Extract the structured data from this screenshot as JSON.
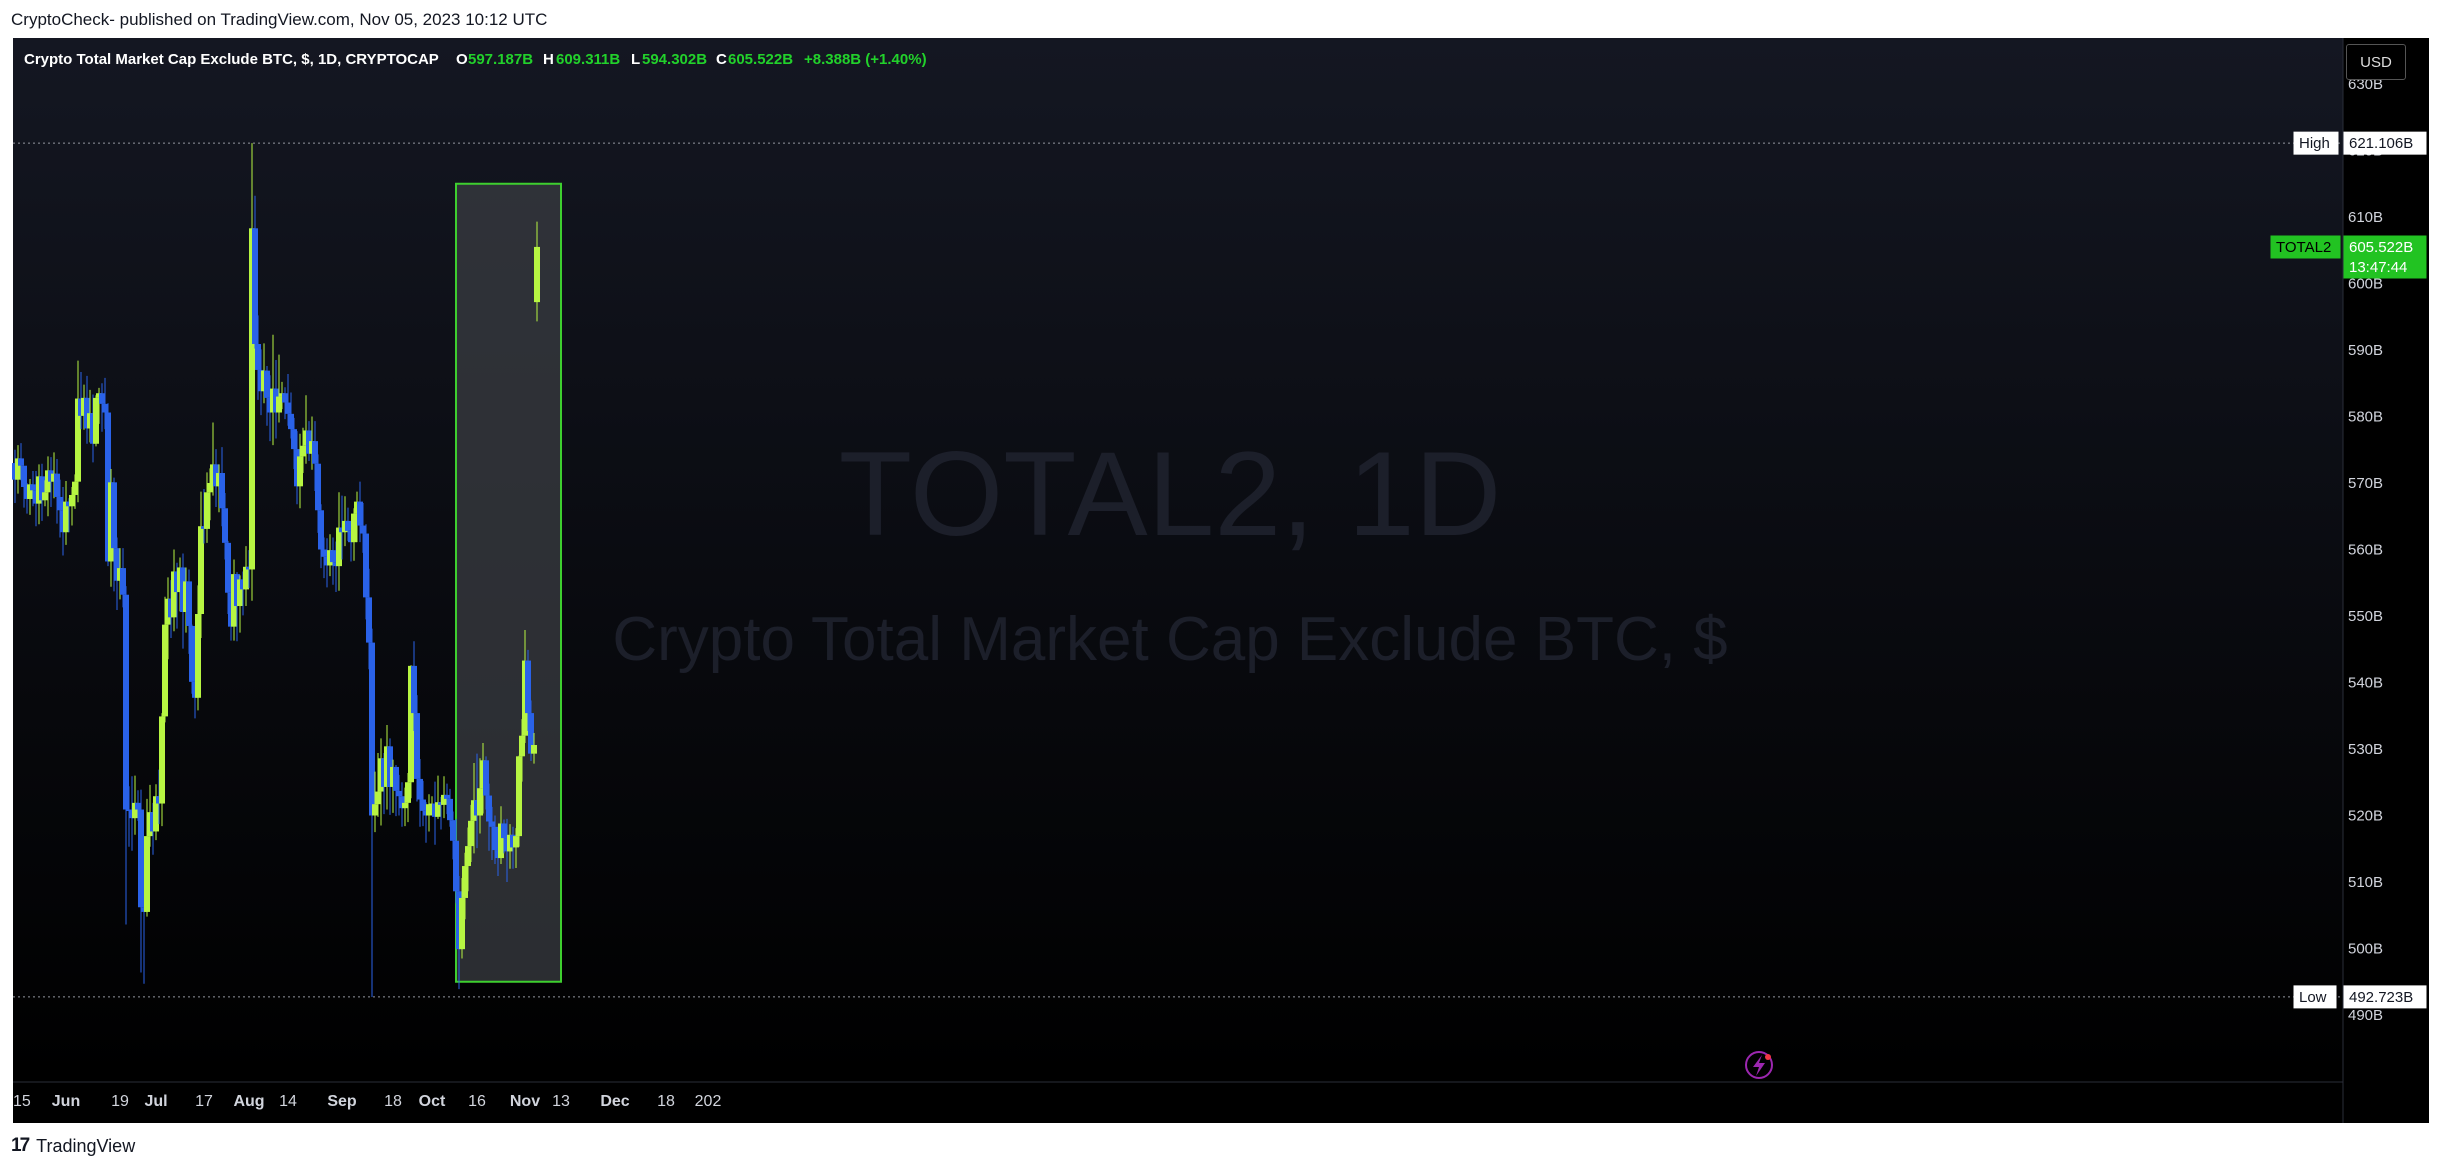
{
  "header": {
    "published": "CryptoCheck- published on TradingView.com, Nov 05, 2023 10:12 UTC"
  },
  "legend": {
    "title": "Crypto Total Market Cap Exclude BTC, $, 1D, CRYPTOCAP",
    "o_label": "O",
    "o_value": "597.187B",
    "h_label": "H",
    "h_value": "609.311B",
    "l_label": "L",
    "l_value": "594.302B",
    "c_label": "C",
    "c_value": "605.522B",
    "change": "+8.388B (+1.40%)"
  },
  "watermark": {
    "symbol": "TOTAL2, 1D",
    "name": "Crypto Total Market Cap Exclude BTC, $"
  },
  "currency_button": "USD",
  "markers": {
    "high_label": "High",
    "high_value": "621.106B",
    "low_label": "Low",
    "low_value": "492.723B",
    "symbol_label": "TOTAL2",
    "price_value": "605.522B",
    "countdown": "13:47:44"
  },
  "footer": {
    "brand": "TradingView"
  },
  "colors": {
    "up": "#b7f542",
    "down": "#2a62e8",
    "box_border": "#3ecf2f",
    "price_tag": "#22c322"
  },
  "chart_data": {
    "type": "candlestick",
    "title": "Crypto Total Market Cap Exclude BTC, $, 1D, CRYPTOCAP",
    "ylim": [
      480,
      635
    ],
    "y_ticks": [
      "490B",
      "500B",
      "510B",
      "520B",
      "530B",
      "540B",
      "550B",
      "560B",
      "570B",
      "580B",
      "590B",
      "600B",
      "610B",
      "620B",
      "630B"
    ],
    "x_ticks": [
      {
        "label": "15",
        "date": "2023-05-15"
      },
      {
        "label": "Jun",
        "date": "2023-06-01"
      },
      {
        "label": "19",
        "date": "2023-06-19"
      },
      {
        "label": "Jul",
        "date": "2023-07-01"
      },
      {
        "label": "17",
        "date": "2023-07-17"
      },
      {
        "label": "Aug",
        "date": "2023-08-01"
      },
      {
        "label": "14",
        "date": "2023-08-14"
      },
      {
        "label": "Sep",
        "date": "2023-09-01"
      },
      {
        "label": "18",
        "date": "2023-09-18"
      },
      {
        "label": "Oct",
        "date": "2023-10-01"
      },
      {
        "label": "16",
        "date": "2023-10-16"
      },
      {
        "label": "Nov",
        "date": "2023-11-01"
      },
      {
        "label": "13",
        "date": "2023-11-13"
      },
      {
        "label": "Dec",
        "date": "2023-12-01"
      },
      {
        "label": "18",
        "date": "2023-12-18"
      },
      {
        "label": "202",
        "date": "2024-01-01"
      }
    ],
    "x_range": [
      "2023-05-15",
      "2024-01-01"
    ],
    "high_line": 621.106,
    "low_line": 492.723,
    "highlight_box": {
      "start": "2023-10-09",
      "end": "2023-11-13",
      "low": 495,
      "high": 615
    },
    "candles": [
      [
        "2023-05-15",
        573,
        570.5,
        575.0,
        567.0
      ],
      [
        "2023-05-16",
        570.5,
        573.7,
        575.7,
        568.4
      ],
      [
        "2023-05-17",
        573.7,
        572.6,
        576.0,
        570.4
      ],
      [
        "2023-05-18",
        572.6,
        569.4,
        571.4,
        566.3
      ],
      [
        "2023-05-19",
        569.4,
        567.6,
        570.0,
        565.4
      ],
      [
        "2023-05-20",
        567.6,
        569.8,
        570.6,
        565.2
      ],
      [
        "2023-05-21",
        569.8,
        568.9,
        571.8,
        566.5
      ],
      [
        "2023-05-22",
        568.9,
        566.9,
        571.8,
        563.5
      ],
      [
        "2023-05-23",
        566.9,
        571.0,
        572.8,
        563.8
      ],
      [
        "2023-05-24",
        571.0,
        567.4,
        572.9,
        564.3
      ],
      [
        "2023-05-25",
        567.4,
        568.6,
        570.4,
        566.5
      ],
      [
        "2023-05-26",
        568.6,
        571.9,
        574.0,
        565.0
      ],
      [
        "2023-05-27",
        571.9,
        570.2,
        573.9,
        566.4
      ],
      [
        "2023-05-28",
        570.2,
        571.4,
        574.6,
        567.7
      ],
      [
        "2023-05-29",
        571.4,
        567.9,
        573.6,
        563.9
      ],
      [
        "2023-05-30",
        567.9,
        565.9,
        570.5,
        561.8
      ],
      [
        "2023-05-31",
        565.9,
        562.6,
        569.4,
        559.1
      ],
      [
        "2023-06-01",
        562.6,
        567.2,
        570.3,
        560.7
      ],
      [
        "2023-06-02",
        567.2,
        566.5,
        567.7,
        562.6
      ],
      [
        "2023-06-03",
        566.5,
        568.2,
        569.4,
        563.6
      ],
      [
        "2023-06-04",
        568.2,
        570.2,
        571.3,
        566.1
      ],
      [
        "2023-06-05",
        570.2,
        582.7,
        588.4,
        567.1
      ],
      [
        "2023-06-06",
        582.7,
        580.1,
        586.7,
        578.1
      ],
      [
        "2023-06-07",
        580.1,
        582.8,
        584.8,
        578.0
      ],
      [
        "2023-06-08",
        582.8,
        578.2,
        586.1,
        575.9
      ],
      [
        "2023-06-09",
        578.2,
        580.5,
        584.0,
        576.1
      ],
      [
        "2023-06-10",
        580.5,
        575.9,
        583.3,
        573.1
      ],
      [
        "2023-06-11",
        575.9,
        582.8,
        583.2,
        575.5
      ],
      [
        "2023-06-12",
        582.8,
        583.5,
        584.3,
        578.9
      ],
      [
        "2023-06-13",
        583.5,
        581.9,
        585.0,
        577.7
      ],
      [
        "2023-06-14",
        581.9,
        580.6,
        585.8,
        578.1
      ],
      [
        "2023-06-15",
        580.6,
        558.2,
        582.0,
        557.5
      ],
      [
        "2023-06-16",
        558.2,
        570.1,
        572.1,
        554.4
      ],
      [
        "2023-06-17",
        570.1,
        560.2,
        570.8,
        553.7
      ],
      [
        "2023-06-18",
        560.2,
        555.3,
        561.8,
        550.9
      ],
      [
        "2023-06-19",
        555.3,
        557.2,
        560.2,
        552.5
      ],
      [
        "2023-06-20",
        557.2,
        553.2,
        560.2,
        551.3
      ],
      [
        "2023-06-21",
        553.2,
        520.9,
        554.5,
        503.6
      ],
      [
        "2023-06-22",
        520.9,
        520.7,
        524.4,
        515.3
      ],
      [
        "2023-06-23",
        520.7,
        519.6,
        525.9,
        514.7
      ],
      [
        "2023-06-24",
        519.6,
        521.9,
        526.0,
        517.1
      ],
      [
        "2023-06-25",
        521.9,
        520.9,
        523.8,
        519.2
      ],
      [
        "2023-06-26",
        520.9,
        506.2,
        523.9,
        496.4
      ],
      [
        "2023-06-27",
        506.2,
        505.5,
        510.7,
        494.7
      ],
      [
        "2023-06-28",
        505.5,
        516.9,
        522.5,
        504.8
      ],
      [
        "2023-06-29",
        516.9,
        520.5,
        524.6,
        515.3
      ],
      [
        "2023-06-30",
        520.5,
        517.6,
        521.9,
        514.1
      ],
      [
        "2023-07-01",
        517.6,
        522.9,
        524.7,
        516.3
      ],
      [
        "2023-07-02",
        522.9,
        521.8,
        526.9,
        518.7
      ],
      [
        "2023-07-03",
        521.8,
        534.9,
        535.4,
        518.4
      ],
      [
        "2023-07-04",
        534.9,
        548.7,
        552.9,
        534.0
      ],
      [
        "2023-07-05",
        548.7,
        552.6,
        555.8,
        543.5
      ],
      [
        "2023-07-06",
        552.6,
        549.8,
        555.4,
        546.7
      ],
      [
        "2023-07-07",
        549.8,
        556.7,
        560.0,
        547.7
      ],
      [
        "2023-07-08",
        556.7,
        553.6,
        558.0,
        548.1
      ],
      [
        "2023-07-09",
        553.6,
        557.3,
        558.8,
        550.7
      ],
      [
        "2023-07-10",
        557.3,
        550.6,
        559.4,
        545.1
      ],
      [
        "2023-07-11",
        550.6,
        555.2,
        557.3,
        547.5
      ],
      [
        "2023-07-12",
        555.2,
        548.5,
        557.0,
        544.3
      ],
      [
        "2023-07-13",
        548.5,
        540.1,
        548.7,
        538.3
      ],
      [
        "2023-07-14",
        540.1,
        537.7,
        543.0,
        534.6
      ],
      [
        "2023-07-15",
        537.7,
        550.3,
        554.6,
        535.8
      ],
      [
        "2023-07-16",
        550.3,
        563.5,
        568.7,
        546.7
      ],
      [
        "2023-07-17",
        563.5,
        563.1,
        569.1,
        560.9
      ],
      [
        "2023-07-18",
        563.1,
        568.6,
        571.6,
        561.0
      ],
      [
        "2023-07-19",
        568.6,
        570.0,
        572.2,
        564.4
      ],
      [
        "2023-07-20",
        570.0,
        572.8,
        579.1,
        568.1
      ],
      [
        "2023-07-21",
        572.8,
        569.5,
        575.1,
        566.4
      ],
      [
        "2023-07-22",
        569.5,
        571.5,
        572.8,
        565.6
      ],
      [
        "2023-07-23",
        571.5,
        566.2,
        575.4,
        563.5
      ],
      [
        "2023-07-24",
        566.2,
        561.0,
        568.5,
        558.5
      ],
      [
        "2023-07-25",
        561.0,
        553.5,
        561.3,
        550.3
      ],
      [
        "2023-07-26",
        553.5,
        548.4,
        554.6,
        546.3
      ],
      [
        "2023-07-27",
        548.4,
        556.3,
        558.5,
        546.3
      ],
      [
        "2023-07-28",
        556.3,
        551.5,
        556.6,
        546.2
      ],
      [
        "2023-07-29",
        551.5,
        555.5,
        556.1,
        547.5
      ],
      [
        "2023-07-30",
        555.5,
        554.0,
        556.7,
        550.1
      ],
      [
        "2023-07-31",
        554.0,
        557.4,
        560.5,
        551.5
      ],
      [
        "2023-08-01",
        557.4,
        557.0,
        559.9,
        554.2
      ],
      [
        "2023-08-02",
        557.0,
        608.3,
        621.1,
        552.3
      ],
      [
        "2023-08-03",
        608.3,
        590.9,
        613.2,
        590.2
      ],
      [
        "2023-08-04",
        590.9,
        587.0,
        595.2,
        582.5
      ],
      [
        "2023-08-05",
        587.0,
        583.8,
        590.1,
        580.2
      ],
      [
        "2023-08-06",
        583.8,
        586.9,
        591.0,
        582.0
      ],
      [
        "2023-08-07",
        586.9,
        582.8,
        587.6,
        578.6
      ],
      [
        "2023-08-08",
        582.8,
        580.6,
        586.2,
        576.3
      ],
      [
        "2023-08-09",
        580.6,
        584.2,
        592.3,
        575.7
      ],
      [
        "2023-08-10",
        584.2,
        580.6,
        588.5,
        576.7
      ],
      [
        "2023-08-11",
        580.6,
        583.0,
        589.3,
        579.1
      ],
      [
        "2023-08-12",
        583.0,
        583.5,
        585.2,
        581.1
      ],
      [
        "2023-08-13",
        583.5,
        582.1,
        584.4,
        579.6
      ],
      [
        "2023-08-14",
        582.1,
        580.4,
        586.4,
        578.6
      ],
      [
        "2023-08-15",
        580.4,
        578.1,
        583.6,
        576.7
      ],
      [
        "2023-08-16",
        578.1,
        575.1,
        579.8,
        572.1
      ],
      [
        "2023-08-17",
        575.1,
        569.5,
        577.8,
        566.8
      ],
      [
        "2023-08-18",
        569.5,
        574.0,
        577.4,
        566.2
      ],
      [
        "2023-08-19",
        574.0,
        575.6,
        578.3,
        571.5
      ],
      [
        "2023-08-20",
        575.6,
        577.9,
        583.2,
        572.9
      ],
      [
        "2023-08-21",
        577.9,
        574.4,
        579.3,
        573.3
      ],
      [
        "2023-08-22",
        574.4,
        576.3,
        580.0,
        572.0
      ],
      [
        "2023-08-23",
        576.3,
        572.9,
        579.3,
        568.8
      ],
      [
        "2023-08-24",
        572.9,
        565.9,
        574.3,
        562.5
      ],
      [
        "2023-08-25",
        565.9,
        560.0,
        566.8,
        557.2
      ],
      [
        "2023-08-26",
        560.0,
        558.9,
        561.8,
        555.7
      ],
      [
        "2023-08-27",
        558.9,
        557.6,
        561.7,
        554.3
      ],
      [
        "2023-08-28",
        557.6,
        559.9,
        562.3,
        556.0
      ],
      [
        "2023-08-29",
        559.9,
        558.1,
        561.8,
        554.7
      ],
      [
        "2023-08-30",
        558.1,
        557.5,
        561.2,
        553.6
      ],
      [
        "2023-08-31",
        557.5,
        563.3,
        568.6,
        553.8
      ],
      [
        "2023-09-01",
        563.3,
        562.6,
        568.1,
        558.5
      ],
      [
        "2023-09-02",
        562.6,
        564.3,
        568.0,
        560.5
      ],
      [
        "2023-09-03",
        564.3,
        562.8,
        566.3,
        561.3
      ],
      [
        "2023-09-04",
        562.8,
        561.1,
        563.5,
        558.2
      ],
      [
        "2023-09-05",
        561.1,
        565.4,
        566.2,
        558.3
      ],
      [
        "2023-09-06",
        565.4,
        567.2,
        568.7,
        561.1
      ],
      [
        "2023-09-07",
        567.2,
        563.6,
        570.2,
        561.1
      ],
      [
        "2023-09-08",
        563.6,
        562.4,
        567.0,
        559.5
      ],
      [
        "2023-09-09",
        562.4,
        552.8,
        563.8,
        549.5
      ],
      [
        "2023-09-10",
        552.8,
        546.0,
        557.1,
        542.0
      ],
      [
        "2023-09-11",
        546.0,
        520.0,
        548.1,
        492.7
      ],
      [
        "2023-09-12",
        520.0,
        521.7,
        526.6,
        517.5
      ],
      [
        "2023-09-13",
        521.7,
        523.6,
        529.4,
        519.8
      ],
      [
        "2023-09-14",
        523.6,
        528.6,
        531.6,
        518.5
      ],
      [
        "2023-09-15",
        528.6,
        524.3,
        529.4,
        520.2
      ],
      [
        "2023-09-16",
        524.3,
        530.4,
        533.6,
        520.9
      ],
      [
        "2023-09-17",
        530.4,
        524.3,
        531.6,
        520.1
      ],
      [
        "2023-09-18",
        524.3,
        527.3,
        528.4,
        520.4
      ],
      [
        "2023-09-19",
        527.3,
        523.7,
        527.6,
        519.9
      ],
      [
        "2023-09-20",
        523.7,
        522.9,
        526.1,
        520.0
      ],
      [
        "2023-09-21",
        522.9,
        521.1,
        525.0,
        518.3
      ],
      [
        "2023-09-22",
        521.1,
        521.9,
        524.2,
        518.4
      ],
      [
        "2023-09-23",
        521.9,
        525.0,
        526.4,
        519.0
      ],
      [
        "2023-09-24",
        525.0,
        542.5,
        542.6,
        522.6
      ],
      [
        "2023-09-25",
        542.5,
        535.4,
        546.2,
        532.7
      ],
      [
        "2023-09-26",
        535.4,
        525.5,
        538.1,
        522.1
      ],
      [
        "2023-09-27",
        525.5,
        522.4,
        528.5,
        518.3
      ],
      [
        "2023-09-28",
        522.4,
        520.7,
        525.2,
        518.4
      ],
      [
        "2023-09-29",
        520.7,
        520.0,
        522.0,
        515.9
      ],
      [
        "2023-09-30",
        520.0,
        521.7,
        523.2,
        517.6
      ],
      [
        "2023-10-01",
        521.7,
        521.8,
        522.9,
        520.5
      ],
      [
        "2023-10-02",
        521.8,
        519.8,
        525.1,
        515.6
      ],
      [
        "2023-10-03",
        519.8,
        522.0,
        526.0,
        519.5
      ],
      [
        "2023-10-04",
        522.0,
        521.6,
        522.8,
        517.9
      ],
      [
        "2023-10-05",
        521.6,
        523.1,
        525.9,
        519.6
      ],
      [
        "2023-10-06",
        523.1,
        522.5,
        524.8,
        520.2
      ],
      [
        "2023-10-07",
        522.5,
        519.3,
        524.0,
        518.3
      ],
      [
        "2023-10-08",
        519.3,
        516.2,
        520.6,
        513.4
      ],
      [
        "2023-10-09",
        516.2,
        508.6,
        519.5,
        506.8
      ],
      [
        "2023-10-10",
        508.6,
        499.9,
        510.9,
        493.9
      ],
      [
        "2023-10-11",
        499.9,
        507.6,
        510.6,
        498.5
      ],
      [
        "2023-10-12",
        507.6,
        512.4,
        514.4,
        504.4
      ],
      [
        "2023-10-13",
        512.4,
        515.4,
        518.2,
        508.6
      ],
      [
        "2023-10-14",
        515.4,
        519.2,
        521.6,
        513.0
      ],
      [
        "2023-10-15",
        519.2,
        522.3,
        527.9,
        514.3
      ],
      [
        "2023-10-16",
        522.3,
        520.0,
        529.3,
        515.1
      ],
      [
        "2023-10-17",
        520.0,
        524.1,
        528.6,
        517.3
      ],
      [
        "2023-10-18",
        524.1,
        528.3,
        530.9,
        520.3
      ],
      [
        "2023-10-19",
        528.3,
        523.0,
        528.9,
        520.9
      ],
      [
        "2023-10-20",
        523.0,
        519.1,
        524.8,
        514.7
      ],
      [
        "2023-10-21",
        519.1,
        518.3,
        521.3,
        513.3
      ],
      [
        "2023-10-22",
        518.3,
        514.8,
        520.0,
        512.7
      ],
      [
        "2023-10-23",
        514.8,
        513.6,
        516.0,
        510.9
      ],
      [
        "2023-10-24",
        513.6,
        518.8,
        521.4,
        512.7
      ],
      [
        "2023-10-25",
        518.8,
        516.6,
        519.4,
        514.3
      ],
      [
        "2023-10-26",
        516.6,
        514.6,
        519.5,
        510.0
      ],
      [
        "2023-10-27",
        514.6,
        517.1,
        518.7,
        512.0
      ],
      [
        "2023-10-28",
        517.1,
        515.2,
        518.3,
        512.0
      ],
      [
        "2023-10-29",
        515.2,
        516.9,
        518.1,
        512.1
      ],
      [
        "2023-10-30",
        516.9,
        528.9,
        529.0,
        515.3
      ],
      [
        "2023-10-31",
        528.9,
        532.0,
        534.5,
        525.1
      ],
      [
        "2023-11-01",
        532.0,
        543.3,
        547.9,
        530.9
      ],
      [
        "2023-11-02",
        543.3,
        535.4,
        544.9,
        532.7
      ],
      [
        "2023-11-03",
        535.4,
        529.3,
        537.3,
        528.2
      ],
      [
        "2023-11-04",
        529.3,
        530.6,
        532.4,
        527.8
      ],
      [
        "2023-11-05",
        597.2,
        605.5,
        609.3,
        594.3
      ]
    ]
  }
}
